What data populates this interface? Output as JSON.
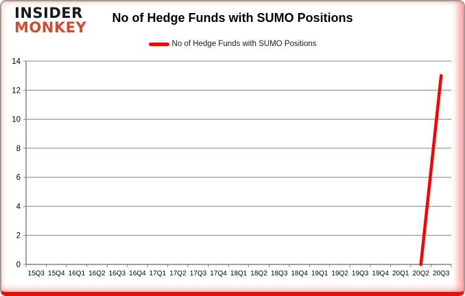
{
  "logo": {
    "line1": "INSIDER",
    "line2": "MONKEY"
  },
  "header": {
    "title": "No of Hedge Funds with SUMO Positions"
  },
  "legend": {
    "label": "No of Hedge Funds with SUMO Positions",
    "color": "#fe0000"
  },
  "colors": {
    "series_red": "#fe0000",
    "logo_red": "#d6492f",
    "grid": "#808080",
    "axis": "#808080",
    "tick_text": "#000000",
    "frame_border": "#9b9b9b",
    "frame_bottom": "#f60b00"
  },
  "chart_data": {
    "type": "line",
    "title": "No of Hedge Funds with SUMO Positions",
    "categories": [
      "15Q3",
      "15Q4",
      "16Q1",
      "16Q2",
      "16Q3",
      "16Q4",
      "17Q1",
      "17Q2",
      "17Q3",
      "17Q4",
      "18Q1",
      "18Q2",
      "18Q3",
      "18Q4",
      "19Q1",
      "19Q2",
      "19Q3",
      "19Q4",
      "20Q1",
      "20Q2",
      "20Q3"
    ],
    "series": [
      {
        "name": "No of Hedge Funds with SUMO Positions",
        "color": "#fe0000",
        "values": [
          null,
          null,
          null,
          null,
          null,
          null,
          null,
          null,
          null,
          null,
          null,
          null,
          null,
          null,
          null,
          null,
          null,
          null,
          null,
          0,
          13
        ]
      }
    ],
    "xlabel": "",
    "ylabel": "",
    "ylim": [
      0,
      14
    ],
    "yticks": [
      0,
      2,
      4,
      6,
      8,
      10,
      12,
      14
    ],
    "grid": true,
    "legend_position": "top"
  }
}
